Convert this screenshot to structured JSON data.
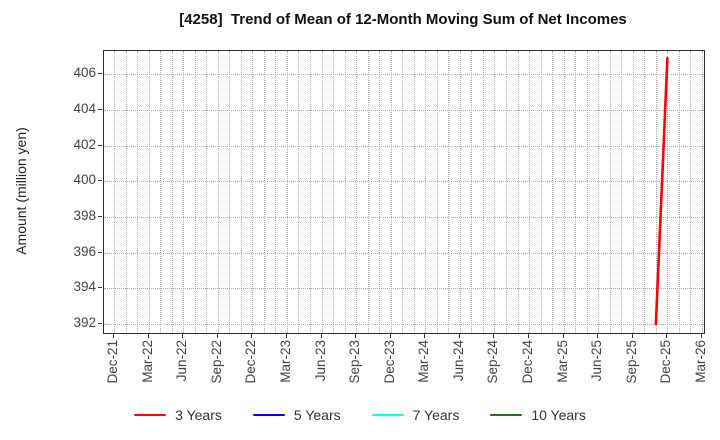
{
  "title": "[4258]  Trend of Mean of 12-Month Moving Sum of Net Incomes",
  "chart_data": {
    "type": "line",
    "title": "[4258]  Trend of Mean of 12-Month Moving Sum of Net Incomes",
    "xlabel": "",
    "ylabel": "Amount (million yen)",
    "grid": true,
    "legend_position": "bottom-center",
    "x_axis": {
      "start_month": "Dec-21",
      "end_month": "Mar-26",
      "months_total": 51,
      "tick_every_months": 3,
      "tick_labels": [
        "Dec-21",
        "Mar-22",
        "Jun-22",
        "Sep-22",
        "Dec-22",
        "Mar-23",
        "Jun-23",
        "Sep-23",
        "Dec-23",
        "Mar-24",
        "Jun-24",
        "Sep-24",
        "Dec-24",
        "Mar-25",
        "Jun-25",
        "Sep-25",
        "Dec-25",
        "Mar-26"
      ]
    },
    "y_axis": {
      "ticks": [
        392,
        394,
        396,
        398,
        400,
        402,
        404,
        406
      ],
      "range": [
        391.5,
        407.3
      ]
    },
    "series": [
      {
        "name": "3 Years",
        "color": "#ff0000",
        "points": [
          {
            "month": "Nov-25",
            "month_index": 47,
            "value": 392.0
          },
          {
            "month": "Dec-25",
            "month_index": 48,
            "value": 406.9
          }
        ]
      },
      {
        "name": "5 Years",
        "color": "#0000ff",
        "points": []
      },
      {
        "name": "7 Years",
        "color": "#00ffff",
        "points": []
      },
      {
        "name": "10 Years",
        "color": "#008000",
        "points": []
      }
    ]
  }
}
